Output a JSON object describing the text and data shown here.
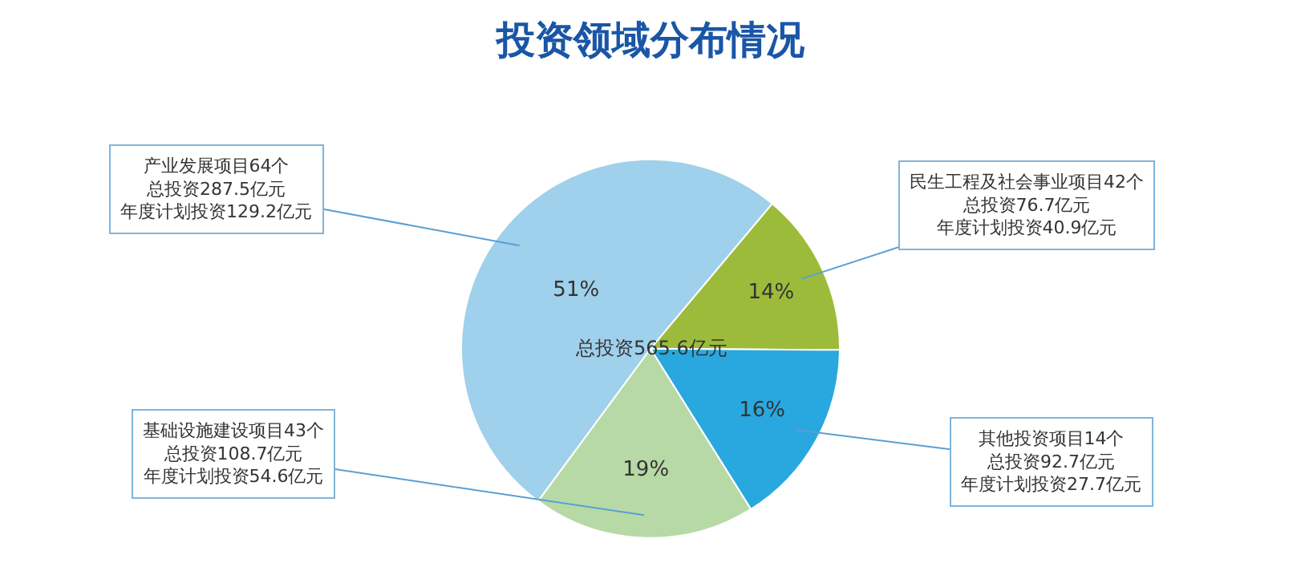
{
  "chart_data": {
    "type": "pie",
    "title": "投资领域分布情况",
    "categories": [
      "民生工程及社会事业项目42个",
      "其他投资项目14个",
      "基础设施建设项目43个",
      "产业发展项目64个"
    ],
    "values": [
      14,
      16,
      19,
      51
    ],
    "colors": [
      "#9dbb3a",
      "#29a8e0",
      "#b7d9a6",
      "#9fd0ec"
    ],
    "value_labels": [
      "14%",
      "16%",
      "19%",
      "51%"
    ],
    "annotations": [
      "总投资76.7亿元",
      "年度计划投资40.9亿元",
      "总投资92.7亿元",
      "年度计划投资27.7亿元",
      "总投资108.7亿元",
      "年度计划投资54.6亿元",
      "总投资287.5亿元",
      "年度计划投资129.2亿元",
      "总投资565.6亿元"
    ]
  }
}
